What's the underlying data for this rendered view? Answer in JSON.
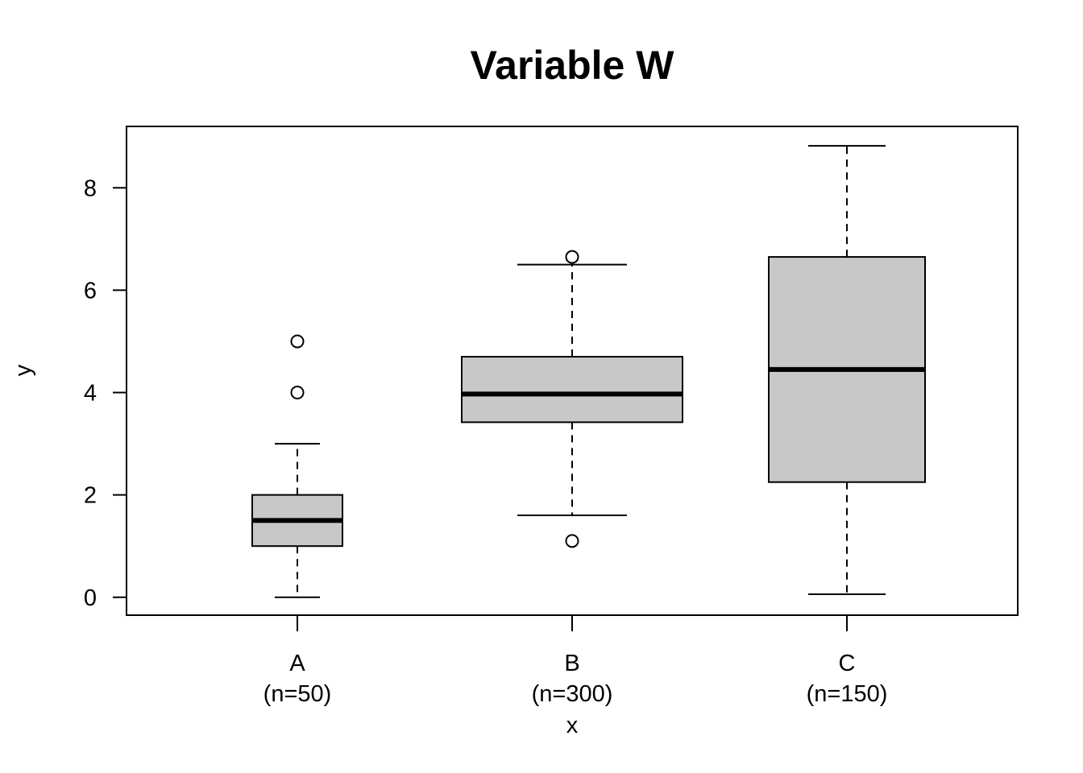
{
  "chart_data": {
    "type": "boxplot",
    "title": "Variable W",
    "xlabel": "x",
    "ylabel": "y",
    "ylim": [
      -0.35,
      9.2
    ],
    "yticks": [
      0,
      2,
      4,
      6,
      8
    ],
    "ytick_labels": [
      "0",
      "2",
      "4",
      "6",
      "8"
    ],
    "grid": false,
    "box_fill": "#c8c8c8",
    "groups": [
      {
        "category": "A",
        "n_label": "(n=50)",
        "whisker_low": 0.0,
        "q1": 1.0,
        "median": 1.5,
        "q3": 2.0,
        "whisker_high": 3.0,
        "outliers": [
          4.0,
          5.0
        ]
      },
      {
        "category": "B",
        "n_label": "(n=300)",
        "whisker_low": 1.6,
        "q1": 3.42,
        "median": 3.97,
        "q3": 4.7,
        "whisker_high": 6.5,
        "outliers": [
          1.1,
          6.65
        ]
      },
      {
        "category": "C",
        "n_label": "(n=150)",
        "whisker_low": 0.06,
        "q1": 2.25,
        "median": 4.45,
        "q3": 6.65,
        "whisker_high": 8.82,
        "outliers": []
      }
    ]
  }
}
